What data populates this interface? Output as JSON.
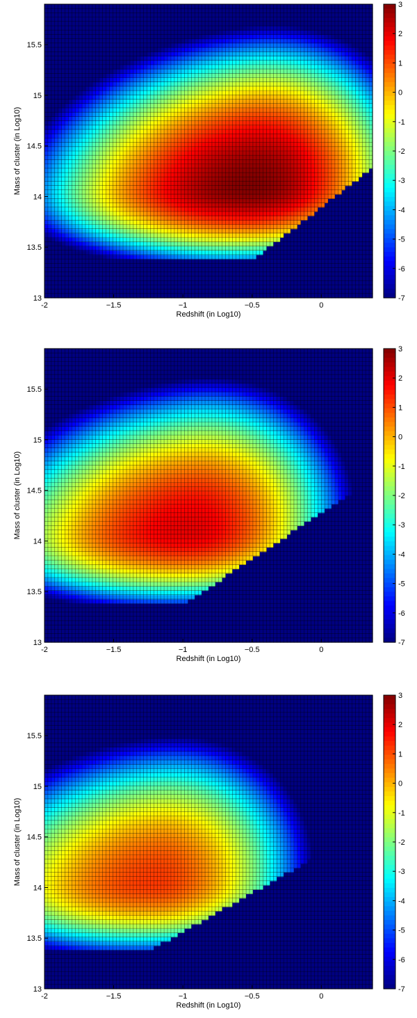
{
  "chart_data": [
    {
      "type": "heatmap",
      "title": "",
      "xlabel": "Redshift (in Log10)",
      "ylabel": "Mass of cluster (in Log10)",
      "xlim": [
        -2,
        0.37
      ],
      "ylim": [
        13,
        15.9
      ],
      "xticks": [
        -2,
        -1.5,
        -1,
        -0.5,
        0
      ],
      "xtick_labels": [
        "-2",
        "−1.5",
        "−1",
        "−0.5",
        "0"
      ],
      "yticks": [
        13,
        13.5,
        14,
        14.5,
        15,
        15.5
      ],
      "ytick_labels": [
        "13",
        "13.5",
        "14",
        "14.5",
        "15",
        "15.5"
      ],
      "colorbar": {
        "min": -7,
        "max": 3,
        "ticks": [
          3,
          2,
          1,
          0,
          -1,
          -2,
          -3,
          -4,
          -5,
          -6,
          -7
        ],
        "labels": [
          "3",
          "2",
          "1",
          "0",
          "-1",
          "-2",
          "-3",
          "-4",
          "-5",
          "-6",
          "-7"
        ],
        "colormap": "jet"
      },
      "grid": true,
      "peak": {
        "x": -0.5,
        "y": 14.1,
        "value": 3
      },
      "lower_mass_cutoff": 13.37,
      "lower_edge_redshift_at_cutoff": -0.5,
      "lower_edge_slope": 0.95
    },
    {
      "type": "heatmap",
      "title": "",
      "xlabel": "Redshift (in Log10)",
      "ylabel": "Mass of cluster (in Log10)",
      "xlim": [
        -2,
        0.37
      ],
      "ylim": [
        13,
        15.9
      ],
      "xticks": [
        -2,
        -1.5,
        -1,
        -0.5,
        0
      ],
      "xtick_labels": [
        "-2",
        "−1.5",
        "−1",
        "−0.5",
        "0"
      ],
      "yticks": [
        13,
        13.5,
        14,
        14.5,
        15,
        15.5
      ],
      "ytick_labels": [
        "13",
        "13.5",
        "14",
        "14.5",
        "15",
        "15.5"
      ],
      "colorbar": {
        "min": -7,
        "max": 3,
        "ticks": [
          3,
          2,
          1,
          0,
          -1,
          -2,
          -3,
          -4,
          -5,
          -6,
          -7
        ],
        "labels": [
          "3",
          "2",
          "1",
          "0",
          "-1",
          "-2",
          "-3",
          "-4",
          "-5",
          "-6",
          "-7"
        ],
        "colormap": "jet"
      },
      "grid": true,
      "peak": {
        "x": -0.95,
        "y": 14.1,
        "value": 2
      },
      "lower_mass_cutoff": 13.37,
      "lower_edge_redshift_at_cutoff": -1.0,
      "lower_edge_slope": 1.1
    },
    {
      "type": "heatmap",
      "title": "",
      "xlabel": "Redshift (in Log10)",
      "ylabel": "Mass of cluster (in Log10)",
      "xlim": [
        -2,
        0.37
      ],
      "ylim": [
        13,
        15.9
      ],
      "xticks": [
        -2,
        -1.5,
        -1,
        -0.5,
        0
      ],
      "xtick_labels": [
        "-2",
        "−1.5",
        "−1",
        "−0.5",
        "0"
      ],
      "yticks": [
        13,
        13.5,
        14,
        14.5,
        15,
        15.5
      ],
      "ytick_labels": [
        "13",
        "13.5",
        "14",
        "14.5",
        "15",
        "15.5"
      ],
      "colorbar": {
        "min": -7,
        "max": 3,
        "ticks": [
          3,
          2,
          1,
          0,
          -1,
          -2,
          -3,
          -4,
          -5,
          -6,
          -7
        ],
        "labels": [
          "3",
          "2",
          "1",
          "0",
          "-1",
          "-2",
          "-3",
          "-4",
          "-5",
          "-6",
          "-7"
        ],
        "colormap": "jet"
      },
      "grid": true,
      "peak": {
        "x": -1.2,
        "y": 14.05,
        "value": 1.2
      },
      "lower_mass_cutoff": 13.37,
      "lower_edge_redshift_at_cutoff": -1.25,
      "lower_edge_slope": 1.3
    }
  ]
}
